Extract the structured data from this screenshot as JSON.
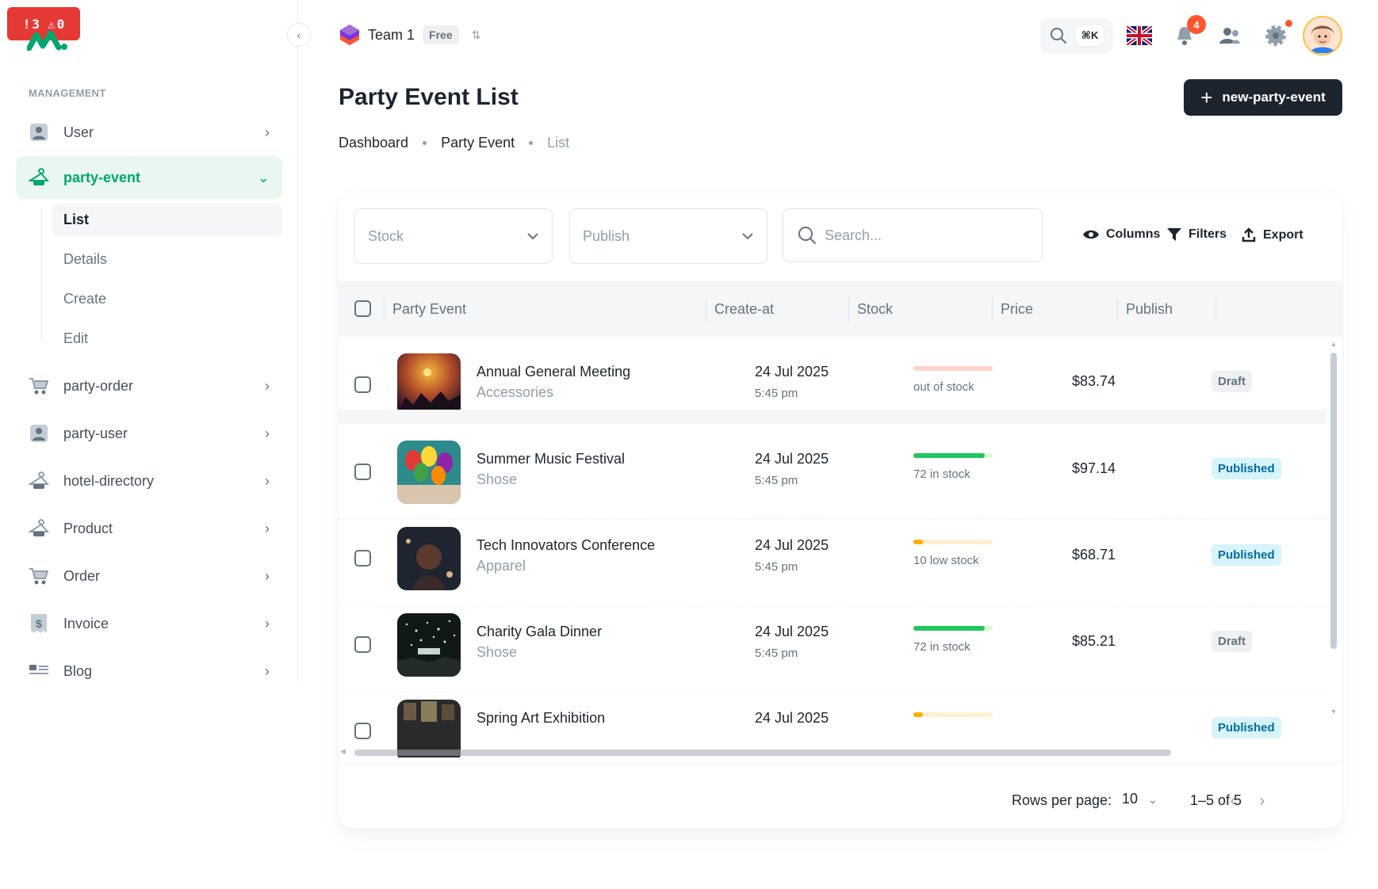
{
  "dev_badge": {
    "errors": "3",
    "warnings": "0"
  },
  "sidebar": {
    "section_label": "MANAGEMENT",
    "items": [
      {
        "label": "User",
        "icon": "user-icon"
      },
      {
        "label": "party-event",
        "icon": "hanger-icon",
        "active": true
      },
      {
        "label": "party-order",
        "icon": "cart-icon"
      },
      {
        "label": "party-user",
        "icon": "user-icon"
      },
      {
        "label": "hotel-directory",
        "icon": "hanger-icon"
      },
      {
        "label": "Product",
        "icon": "hanger-icon"
      },
      {
        "label": "Order",
        "icon": "cart-icon"
      },
      {
        "label": "Invoice",
        "icon": "invoice-icon"
      },
      {
        "label": "Blog",
        "icon": "blog-icon"
      }
    ],
    "sub_items": [
      "List",
      "Details",
      "Create",
      "Edit"
    ]
  },
  "header": {
    "team_name": "Team 1",
    "team_plan": "Free",
    "search_shortcut": "⌘K",
    "notification_count": "4"
  },
  "page": {
    "title": "Party Event List",
    "new_button": "new-party-event",
    "breadcrumb": [
      "Dashboard",
      "Party Event",
      "List"
    ]
  },
  "filters": {
    "stock_placeholder": "Stock",
    "publish_placeholder": "Publish",
    "search_placeholder": "Search...",
    "columns_label": "Columns",
    "filters_label": "Filters",
    "export_label": "Export"
  },
  "table": {
    "headers": [
      "Party Event",
      "Create-at",
      "Stock",
      "Price",
      "Publish"
    ],
    "rows": [
      {
        "name": "Annual General Meeting",
        "category": "Accessories",
        "date": "24 Jul 2025",
        "time": "5:45 pm",
        "stock_label": "out of stock",
        "stock_level": 0,
        "stock_status": "out",
        "price": "$83.74",
        "publish": "Draft"
      },
      {
        "name": "Summer Music Festival",
        "category": "Shose",
        "date": "24 Jul 2025",
        "time": "5:45 pm",
        "stock_label": "72 in stock",
        "stock_level": 0.9,
        "stock_status": "in",
        "price": "$97.14",
        "publish": "Published"
      },
      {
        "name": "Tech Innovators Conference",
        "category": "Apparel",
        "date": "24 Jul 2025",
        "time": "5:45 pm",
        "stock_label": "10 low stock",
        "stock_level": 0.12,
        "stock_status": "low",
        "price": "$68.71",
        "publish": "Published"
      },
      {
        "name": "Charity Gala Dinner",
        "category": "Shose",
        "date": "24 Jul 2025",
        "time": "5:45 pm",
        "stock_label": "72 in stock",
        "stock_level": 0.9,
        "stock_status": "in",
        "price": "$85.21",
        "publish": "Draft"
      },
      {
        "name": "Spring Art Exhibition",
        "category": "",
        "date": "24 Jul 2025",
        "time": "",
        "stock_label": "",
        "stock_level": 0.12,
        "stock_status": "low",
        "price": "",
        "publish": "Published"
      }
    ]
  },
  "pagination": {
    "rows_per_page_label": "Rows per page:",
    "rows_per_page_value": "10",
    "range": "1–5 of 5"
  },
  "colors": {
    "accent": "#00a76f",
    "primary_dark": "#1c252e",
    "error": "#ff5630",
    "success": "#22c55e",
    "warning": "#ffab00"
  }
}
